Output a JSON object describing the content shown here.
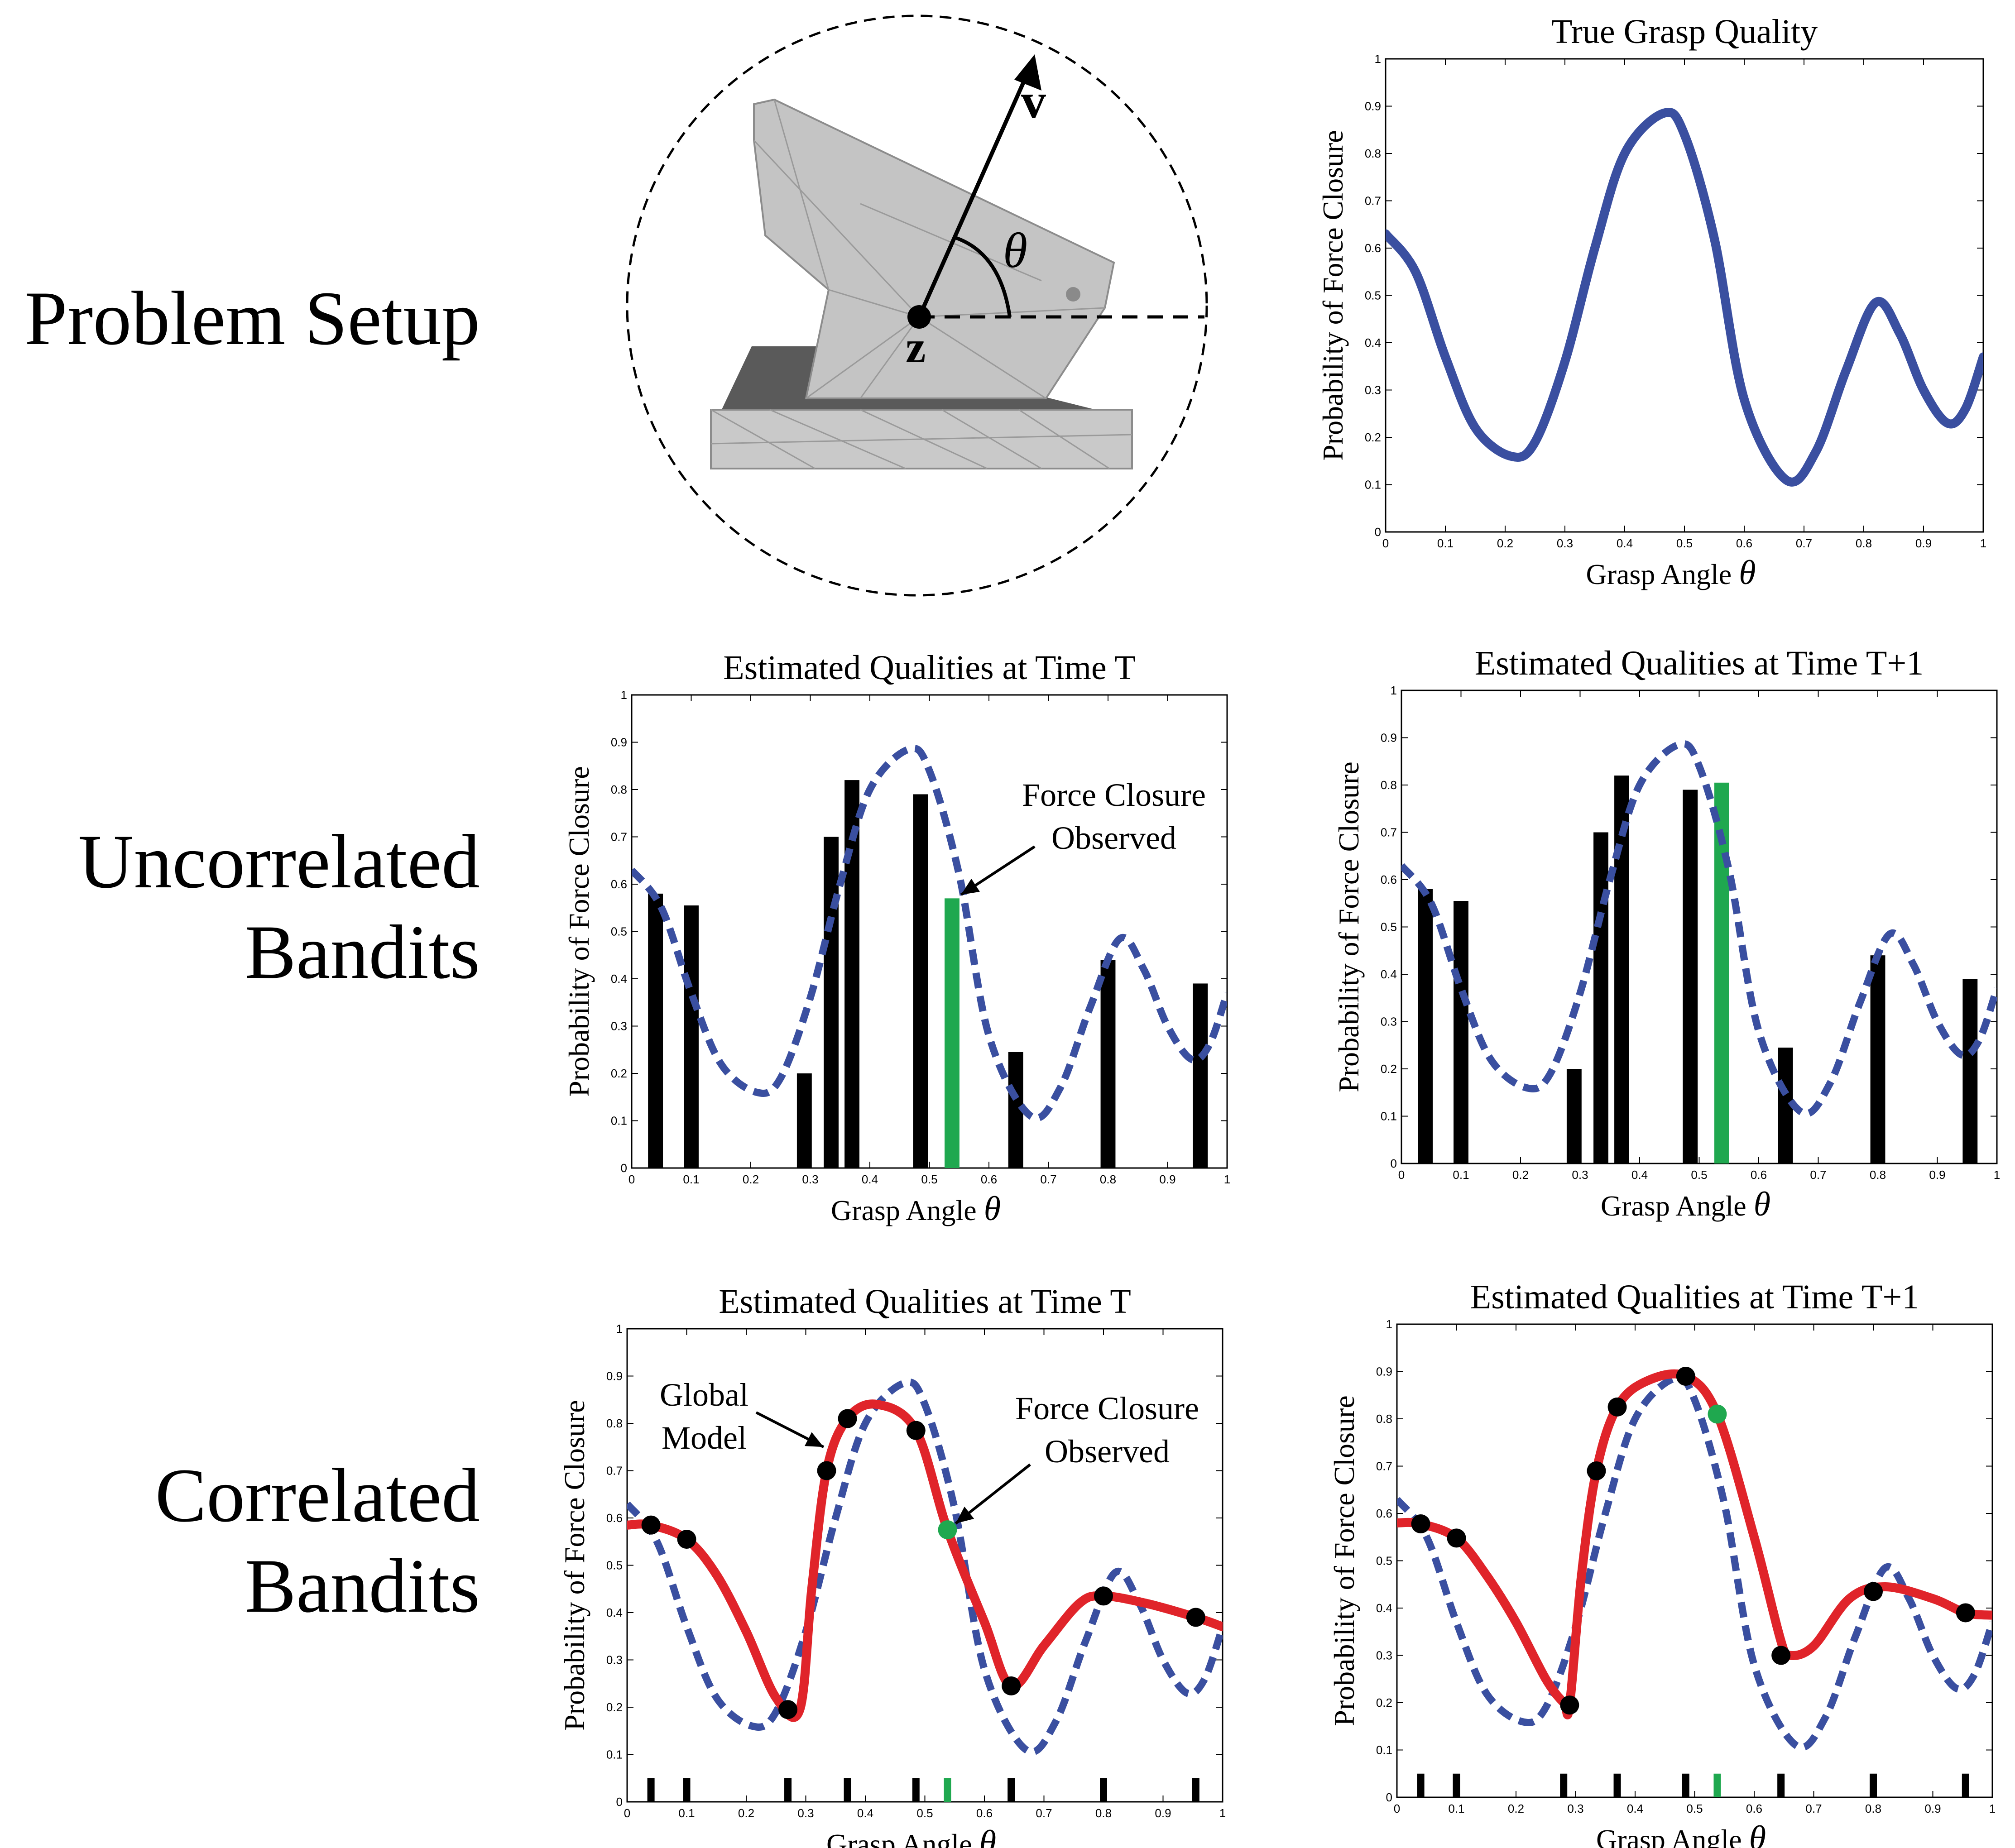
{
  "row_labels": {
    "problem_setup": "Problem Setup",
    "uncorrelated_line1": "Uncorrelated",
    "uncorrelated_line2": "Bandits",
    "correlated_line1": "Correlated",
    "correlated_line2": "Bandits"
  },
  "diagram": {
    "vector_label": "v",
    "center_label": "z",
    "angle_label": "θ",
    "colors": {
      "object_light": "#c8c8c8",
      "object_dark": "#555555",
      "edges": "#909090"
    }
  },
  "colors": {
    "true_curve": "#3a4fa0",
    "estimate_curve": "#e0242a",
    "bar_black": "#000000",
    "bar_observed": "#1fa84f"
  },
  "chart_data": [
    {
      "id": "true",
      "type": "line",
      "title": "True Grasp Quality",
      "xlabel": "Grasp Angle",
      "xlabel_symbol": "θ",
      "ylabel": "Probability of Force Closure",
      "xlim": [
        0,
        1
      ],
      "ylim": [
        0,
        1
      ],
      "xticks": [
        "0",
        "0.1",
        "0.2",
        "0.3",
        "0.4",
        "0.5",
        "0.6",
        "0.7",
        "0.8",
        "0.9",
        "1"
      ],
      "yticks": [
        "0",
        "0.1",
        "0.2",
        "0.3",
        "0.4",
        "0.5",
        "0.6",
        "0.7",
        "0.8",
        "0.9",
        "1"
      ],
      "series": [
        {
          "style": "solid",
          "color": "#3a4fa0",
          "x": [
            0,
            0.05,
            0.1,
            0.15,
            0.21,
            0.25,
            0.3,
            0.35,
            0.4,
            0.465,
            0.5,
            0.55,
            0.6,
            0.67,
            0.72,
            0.77,
            0.82,
            0.86,
            0.9,
            0.94,
            0.97,
            1
          ],
          "y": [
            0.63,
            0.55,
            0.37,
            0.22,
            0.16,
            0.19,
            0.36,
            0.6,
            0.8,
            0.885,
            0.84,
            0.62,
            0.28,
            0.11,
            0.17,
            0.34,
            0.485,
            0.42,
            0.3,
            0.23,
            0.26,
            0.37
          ]
        }
      ]
    },
    {
      "id": "uncorr_t",
      "type": "bar",
      "title": "Estimated Qualities at Time T",
      "xlabel": "Grasp Angle",
      "xlabel_symbol": "θ",
      "ylabel": "Probability of Force Closure",
      "xlim": [
        0,
        1
      ],
      "ylim": [
        0,
        1
      ],
      "xticks": [
        "0",
        "0.1",
        "0.2",
        "0.3",
        "0.4",
        "0.5",
        "0.6",
        "0.7",
        "0.8",
        "0.9",
        "1"
      ],
      "yticks": [
        "0",
        "0.1",
        "0.2",
        "0.3",
        "0.4",
        "0.5",
        "0.6",
        "0.7",
        "0.8",
        "0.9",
        "1"
      ],
      "bars": [
        {
          "x": 0.04,
          "value": 0.58
        },
        {
          "x": 0.1,
          "value": 0.555
        },
        {
          "x": 0.29,
          "value": 0.2
        },
        {
          "x": 0.335,
          "value": 0.7
        },
        {
          "x": 0.37,
          "value": 0.82
        },
        {
          "x": 0.485,
          "value": 0.79
        },
        {
          "x": 0.538,
          "value": 0.57,
          "observed": true
        },
        {
          "x": 0.645,
          "value": 0.245
        },
        {
          "x": 0.8,
          "value": 0.44
        },
        {
          "x": 0.955,
          "value": 0.39
        }
      ],
      "annotation": {
        "line1": "Force Closure",
        "line2": "Observed"
      }
    },
    {
      "id": "uncorr_t1",
      "type": "bar",
      "title": "Estimated Qualities at Time T+1",
      "xlabel": "Grasp Angle",
      "xlabel_symbol": "θ",
      "ylabel": "Probability of Force Closure",
      "xlim": [
        0,
        1
      ],
      "ylim": [
        0,
        1
      ],
      "xticks": [
        "0",
        "0.1",
        "0.2",
        "0.3",
        "0.4",
        "0.5",
        "0.6",
        "0.7",
        "0.8",
        "0.9",
        "1"
      ],
      "yticks": [
        "0",
        "0.1",
        "0.2",
        "0.3",
        "0.4",
        "0.5",
        "0.6",
        "0.7",
        "0.8",
        "0.9",
        "1"
      ],
      "bars": [
        {
          "x": 0.04,
          "value": 0.58
        },
        {
          "x": 0.1,
          "value": 0.555
        },
        {
          "x": 0.29,
          "value": 0.2
        },
        {
          "x": 0.335,
          "value": 0.7
        },
        {
          "x": 0.37,
          "value": 0.82
        },
        {
          "x": 0.485,
          "value": 0.79
        },
        {
          "x": 0.538,
          "value": 0.805,
          "observed": true
        },
        {
          "x": 0.645,
          "value": 0.245
        },
        {
          "x": 0.8,
          "value": 0.44
        },
        {
          "x": 0.955,
          "value": 0.39
        }
      ]
    },
    {
      "id": "corr_t",
      "type": "line",
      "title": "Estimated Qualities at Time T",
      "xlabel": "Grasp Angle",
      "xlabel_symbol": "θ",
      "ylabel": "Probability of Force Closure",
      "xlim": [
        0,
        1
      ],
      "ylim": [
        0,
        1
      ],
      "xticks": [
        "0",
        "0.1",
        "0.2",
        "0.3",
        "0.4",
        "0.5",
        "0.6",
        "0.7",
        "0.8",
        "0.9",
        "1"
      ],
      "yticks": [
        "0",
        "0.1",
        "0.2",
        "0.3",
        "0.4",
        "0.5",
        "0.6",
        "0.7",
        "0.8",
        "0.9",
        "1"
      ],
      "series": [
        {
          "style": "solid",
          "color": "#e0242a",
          "x": [
            0,
            0.04,
            0.1,
            0.15,
            0.2,
            0.25,
            0.29,
            0.31,
            0.335,
            0.37,
            0.42,
            0.485,
            0.538,
            0.6,
            0.645,
            0.7,
            0.76,
            0.8,
            0.87,
            0.955,
            1
          ],
          "y": [
            0.585,
            0.585,
            0.555,
            0.48,
            0.36,
            0.22,
            0.195,
            0.45,
            0.7,
            0.81,
            0.84,
            0.785,
            0.575,
            0.38,
            0.245,
            0.33,
            0.42,
            0.435,
            0.42,
            0.39,
            0.37
          ]
        },
        {
          "style": "dashed",
          "color": "#3a4fa0",
          "x": [
            0,
            0.05,
            0.1,
            0.15,
            0.21,
            0.25,
            0.3,
            0.35,
            0.4,
            0.465,
            0.5,
            0.55,
            0.6,
            0.67,
            0.72,
            0.77,
            0.82,
            0.86,
            0.9,
            0.94,
            0.97,
            1
          ],
          "y": [
            0.63,
            0.55,
            0.37,
            0.22,
            0.16,
            0.19,
            0.36,
            0.6,
            0.8,
            0.885,
            0.84,
            0.62,
            0.28,
            0.11,
            0.17,
            0.34,
            0.485,
            0.42,
            0.3,
            0.23,
            0.26,
            0.37
          ]
        }
      ],
      "points": [
        {
          "x": 0.04,
          "y": 0.585
        },
        {
          "x": 0.1,
          "y": 0.555
        },
        {
          "x": 0.27,
          "y": 0.195
        },
        {
          "x": 0.335,
          "y": 0.7
        },
        {
          "x": 0.37,
          "y": 0.81
        },
        {
          "x": 0.485,
          "y": 0.785
        },
        {
          "x": 0.538,
          "y": 0.575,
          "observed": true
        },
        {
          "x": 0.645,
          "y": 0.245
        },
        {
          "x": 0.8,
          "y": 0.435
        },
        {
          "x": 0.955,
          "y": 0.39
        }
      ],
      "rug": [
        0.04,
        0.1,
        0.27,
        0.37,
        0.485,
        0.538,
        0.645,
        0.8,
        0.955
      ],
      "rug_observed": 0.538,
      "annotations": [
        {
          "line1": "Global",
          "line2": "Model"
        },
        {
          "line1": "Force Closure",
          "line2": "Observed"
        }
      ]
    },
    {
      "id": "corr_t1",
      "type": "line",
      "title": "Estimated Qualities at Time T+1",
      "xlabel": "Grasp Angle",
      "xlabel_symbol": "θ",
      "ylabel": "Probability of Force Closure",
      "xlim": [
        0,
        1
      ],
      "ylim": [
        0,
        1
      ],
      "xticks": [
        "0",
        "0.1",
        "0.2",
        "0.3",
        "0.4",
        "0.5",
        "0.6",
        "0.7",
        "0.8",
        "0.9",
        "1"
      ],
      "yticks": [
        "0",
        "0.1",
        "0.2",
        "0.3",
        "0.4",
        "0.5",
        "0.6",
        "0.7",
        "0.8",
        "0.9",
        "1"
      ],
      "series": [
        {
          "style": "solid",
          "color": "#e0242a",
          "x": [
            0,
            0.04,
            0.1,
            0.15,
            0.2,
            0.25,
            0.28,
            0.29,
            0.31,
            0.335,
            0.37,
            0.42,
            0.485,
            0.538,
            0.6,
            0.645,
            0.66,
            0.7,
            0.76,
            0.82,
            0.9,
            0.955,
            1
          ],
          "y": [
            0.58,
            0.578,
            0.548,
            0.47,
            0.37,
            0.25,
            0.2,
            0.195,
            0.47,
            0.69,
            0.825,
            0.88,
            0.89,
            0.81,
            0.55,
            0.33,
            0.3,
            0.32,
            0.42,
            0.445,
            0.42,
            0.39,
            0.385
          ]
        },
        {
          "style": "dashed",
          "color": "#3a4fa0",
          "x": [
            0,
            0.05,
            0.1,
            0.15,
            0.21,
            0.25,
            0.3,
            0.35,
            0.4,
            0.465,
            0.5,
            0.55,
            0.6,
            0.67,
            0.72,
            0.77,
            0.82,
            0.86,
            0.9,
            0.94,
            0.97,
            1
          ],
          "y": [
            0.63,
            0.55,
            0.37,
            0.22,
            0.16,
            0.19,
            0.36,
            0.6,
            0.8,
            0.885,
            0.84,
            0.62,
            0.28,
            0.11,
            0.17,
            0.34,
            0.485,
            0.42,
            0.3,
            0.23,
            0.26,
            0.37
          ]
        }
      ],
      "points": [
        {
          "x": 0.04,
          "y": 0.578
        },
        {
          "x": 0.1,
          "y": 0.548
        },
        {
          "x": 0.29,
          "y": 0.195
        },
        {
          "x": 0.335,
          "y": 0.69
        },
        {
          "x": 0.37,
          "y": 0.825
        },
        {
          "x": 0.485,
          "y": 0.89
        },
        {
          "x": 0.538,
          "y": 0.81,
          "observed": true
        },
        {
          "x": 0.645,
          "y": 0.3
        },
        {
          "x": 0.8,
          "y": 0.435
        },
        {
          "x": 0.955,
          "y": 0.39
        }
      ],
      "rug": [
        0.04,
        0.1,
        0.28,
        0.37,
        0.485,
        0.538,
        0.645,
        0.8,
        0.955
      ],
      "rug_observed": 0.538
    }
  ]
}
